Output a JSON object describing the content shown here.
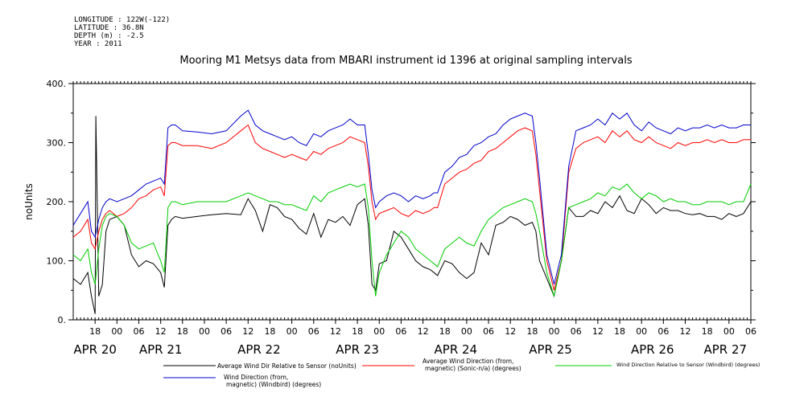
{
  "meta": {
    "longitude": "LONGITUDE : 122W(-122)",
    "latitude": "LATITUDE : 36.8N",
    "depth": "DEPTH (m) : -2.5",
    "year": "YEAR : 2011"
  },
  "chart_data": {
    "type": "line",
    "title": "Mooring M1 Metsys data from MBARI instrument id 1396 at original sampling intervals",
    "ylabel": "noUnits",
    "xlabel": "",
    "ylim": [
      0,
      400
    ],
    "yticks": [
      0,
      100,
      200,
      300,
      400
    ],
    "yticklabels": [
      "0.",
      "100.",
      "200.",
      "300.",
      "400."
    ],
    "xlim": [
      0,
      186
    ],
    "hour_ticks": [
      {
        "x": 6,
        "label": "18"
      },
      {
        "x": 12,
        "label": "00"
      },
      {
        "x": 18,
        "label": "06"
      },
      {
        "x": 24,
        "label": "12"
      },
      {
        "x": 30,
        "label": "18"
      },
      {
        "x": 36,
        "label": "00"
      },
      {
        "x": 42,
        "label": "06"
      },
      {
        "x": 48,
        "label": "12"
      },
      {
        "x": 54,
        "label": "18"
      },
      {
        "x": 60,
        "label": "00"
      },
      {
        "x": 66,
        "label": "06"
      },
      {
        "x": 72,
        "label": "12"
      },
      {
        "x": 78,
        "label": "18"
      },
      {
        "x": 84,
        "label": "00"
      },
      {
        "x": 90,
        "label": "06"
      },
      {
        "x": 96,
        "label": "12"
      },
      {
        "x": 102,
        "label": "18"
      },
      {
        "x": 108,
        "label": "00"
      },
      {
        "x": 114,
        "label": "06"
      },
      {
        "x": 120,
        "label": "12"
      },
      {
        "x": 126,
        "label": "18"
      },
      {
        "x": 132,
        "label": "00"
      },
      {
        "x": 138,
        "label": "06"
      },
      {
        "x": 144,
        "label": "12"
      },
      {
        "x": 150,
        "label": "18"
      },
      {
        "x": 156,
        "label": "00"
      },
      {
        "x": 162,
        "label": "06"
      },
      {
        "x": 168,
        "label": "12"
      },
      {
        "x": 174,
        "label": "18"
      },
      {
        "x": 180,
        "label": "00"
      },
      {
        "x": 186,
        "label": "06"
      }
    ],
    "day_labels": [
      {
        "x": 6,
        "label": "APR 20"
      },
      {
        "x": 24,
        "label": "APR 21"
      },
      {
        "x": 51,
        "label": "APR 22"
      },
      {
        "x": 78,
        "label": "APR 23"
      },
      {
        "x": 105,
        "label": "APR 24"
      },
      {
        "x": 131,
        "label": "APR 25"
      },
      {
        "x": 159,
        "label": "APR 26"
      },
      {
        "x": 179,
        "label": "APR 27"
      }
    ],
    "series": [
      {
        "name": "Average Wind Dir Relative to Sensor (noUnits)",
        "color": "#000000",
        "x": [
          0,
          2,
          4,
          5,
          6,
          6.2,
          7,
          8,
          9,
          10,
          12,
          14,
          16,
          18,
          20,
          22,
          24,
          25,
          26,
          27,
          28,
          30,
          34,
          38,
          42,
          46,
          48,
          50,
          52,
          54,
          56,
          58,
          60,
          62,
          64,
          66,
          68,
          70,
          72,
          74,
          76,
          78,
          80,
          81,
          82,
          83,
          84,
          86,
          88,
          90,
          92,
          94,
          96,
          98,
          99,
          100,
          102,
          104,
          106,
          108,
          110,
          112,
          114,
          116,
          118,
          120,
          122,
          124,
          126,
          127,
          128,
          130,
          132,
          134,
          136,
          138,
          140,
          142,
          144,
          146,
          148,
          150,
          152,
          154,
          156,
          158,
          160,
          162,
          164,
          166,
          168,
          170,
          172,
          174,
          176,
          178,
          180,
          182,
          184,
          186
        ],
        "y": [
          70,
          60,
          80,
          40,
          10,
          345,
          40,
          60,
          150,
          170,
          175,
          160,
          110,
          90,
          100,
          95,
          80,
          55,
          160,
          170,
          175,
          172,
          175,
          178,
          180,
          178,
          205,
          185,
          150,
          195,
          190,
          175,
          170,
          155,
          145,
          180,
          140,
          170,
          165,
          175,
          160,
          195,
          205,
          160,
          60,
          50,
          95,
          100,
          150,
          140,
          120,
          100,
          90,
          85,
          80,
          75,
          100,
          95,
          80,
          70,
          80,
          130,
          110,
          160,
          165,
          175,
          170,
          160,
          165,
          150,
          100,
          70,
          40,
          100,
          190,
          175,
          175,
          185,
          180,
          200,
          190,
          210,
          185,
          180,
          205,
          195,
          180,
          190,
          185,
          185,
          180,
          178,
          180,
          175,
          175,
          170,
          180,
          175,
          180,
          200
        ]
      },
      {
        "name": "Average Wind Direction (from, magnetic) (Sonic-n/a) (degrees)",
        "color": "#ff0000",
        "x": [
          0,
          2,
          4,
          5,
          6,
          7,
          8,
          9,
          10,
          12,
          14,
          16,
          18,
          20,
          22,
          24,
          25,
          26,
          27,
          28,
          30,
          34,
          38,
          42,
          46,
          48,
          50,
          52,
          54,
          56,
          58,
          60,
          62,
          64,
          66,
          68,
          70,
          72,
          74,
          76,
          78,
          80,
          81,
          82,
          83,
          84,
          86,
          88,
          90,
          92,
          94,
          96,
          98,
          99,
          100,
          102,
          104,
          106,
          108,
          110,
          112,
          114,
          116,
          118,
          120,
          122,
          124,
          126,
          127,
          128,
          130,
          132,
          134,
          136,
          138,
          140,
          142,
          144,
          146,
          148,
          150,
          152,
          154,
          156,
          158,
          160,
          162,
          164,
          166,
          168,
          170,
          172,
          174,
          176,
          178,
          180,
          182,
          184,
          186
        ],
        "y": [
          140,
          150,
          170,
          130,
          120,
          150,
          170,
          180,
          185,
          175,
          180,
          190,
          205,
          210,
          220,
          225,
          210,
          295,
          300,
          300,
          295,
          295,
          290,
          300,
          320,
          330,
          300,
          290,
          285,
          280,
          275,
          280,
          275,
          270,
          285,
          280,
          290,
          295,
          300,
          310,
          305,
          300,
          260,
          200,
          170,
          180,
          185,
          190,
          180,
          175,
          185,
          180,
          185,
          190,
          190,
          230,
          240,
          250,
          255,
          265,
          270,
          285,
          290,
          300,
          310,
          320,
          325,
          320,
          280,
          220,
          100,
          50,
          100,
          250,
          290,
          300,
          305,
          310,
          300,
          320,
          310,
          320,
          305,
          300,
          310,
          300,
          295,
          290,
          300,
          295,
          300,
          300,
          305,
          300,
          305,
          300,
          300,
          305,
          305
        ]
      },
      {
        "name": "Wind Direction Relative to Sensor (Windbird) (degrees)",
        "color": "#00cc00",
        "x": [
          0,
          2,
          4,
          5,
          6,
          7,
          8,
          9,
          10,
          12,
          14,
          16,
          18,
          20,
          22,
          24,
          25,
          26,
          27,
          28,
          30,
          34,
          38,
          42,
          46,
          48,
          50,
          52,
          54,
          56,
          58,
          60,
          62,
          64,
          66,
          68,
          70,
          72,
          74,
          76,
          78,
          80,
          81,
          82,
          83,
          84,
          86,
          88,
          90,
          92,
          94,
          96,
          98,
          99,
          100,
          102,
          104,
          106,
          108,
          110,
          112,
          114,
          116,
          118,
          120,
          122,
          124,
          126,
          127,
          128,
          130,
          132,
          134,
          136,
          138,
          140,
          142,
          144,
          146,
          148,
          150,
          152,
          154,
          156,
          158,
          160,
          162,
          164,
          166,
          168,
          170,
          172,
          174,
          176,
          178,
          180,
          182,
          184,
          186
        ],
        "y": [
          110,
          100,
          120,
          80,
          60,
          120,
          160,
          175,
          180,
          175,
          160,
          130,
          120,
          125,
          130,
          100,
          80,
          190,
          200,
          200,
          195,
          200,
          200,
          200,
          210,
          215,
          210,
          205,
          200,
          200,
          195,
          195,
          190,
          185,
          210,
          200,
          215,
          220,
          225,
          230,
          225,
          230,
          190,
          100,
          40,
          80,
          110,
          130,
          150,
          140,
          120,
          110,
          100,
          95,
          90,
          120,
          130,
          140,
          130,
          125,
          150,
          170,
          180,
          190,
          195,
          200,
          205,
          200,
          180,
          150,
          80,
          40,
          100,
          190,
          195,
          200,
          205,
          215,
          210,
          225,
          220,
          230,
          215,
          205,
          215,
          210,
          200,
          205,
          200,
          200,
          195,
          195,
          200,
          200,
          200,
          195,
          200,
          200,
          230
        ]
      },
      {
        "name": "Wind Direction (from, magnetic) (Windbird) (degrees)",
        "color": "#0000cc",
        "x": [
          0,
          2,
          4,
          5,
          6,
          7,
          8,
          9,
          10,
          12,
          14,
          16,
          18,
          20,
          22,
          24,
          25,
          26,
          27,
          28,
          30,
          34,
          38,
          42,
          46,
          48,
          50,
          52,
          54,
          56,
          58,
          60,
          62,
          64,
          66,
          68,
          70,
          72,
          74,
          76,
          78,
          80,
          81,
          82,
          83,
          84,
          86,
          88,
          90,
          92,
          94,
          96,
          98,
          99,
          100,
          102,
          104,
          106,
          108,
          110,
          112,
          114,
          116,
          118,
          120,
          122,
          124,
          126,
          127,
          128,
          130,
          132,
          134,
          136,
          138,
          140,
          142,
          144,
          146,
          148,
          150,
          152,
          154,
          156,
          158,
          160,
          162,
          164,
          166,
          168,
          170,
          172,
          174,
          176,
          178,
          180,
          182,
          184,
          186
        ],
        "y": [
          160,
          180,
          200,
          150,
          140,
          170,
          190,
          200,
          205,
          200,
          205,
          210,
          220,
          230,
          235,
          240,
          230,
          325,
          330,
          330,
          320,
          318,
          315,
          320,
          345,
          355,
          330,
          320,
          315,
          310,
          305,
          310,
          300,
          295,
          315,
          310,
          320,
          325,
          330,
          340,
          330,
          330,
          280,
          220,
          190,
          200,
          210,
          215,
          210,
          200,
          210,
          205,
          210,
          215,
          215,
          250,
          260,
          275,
          280,
          295,
          300,
          310,
          315,
          330,
          340,
          345,
          350,
          345,
          300,
          240,
          110,
          60,
          110,
          260,
          320,
          325,
          330,
          340,
          330,
          350,
          340,
          350,
          330,
          320,
          335,
          325,
          320,
          315,
          325,
          320,
          325,
          325,
          330,
          325,
          330,
          325,
          325,
          330,
          330
        ]
      }
    ],
    "legend_labels": {
      "black": "Average Wind Dir Relative to Sensor (noUnits)",
      "red1": "Average Wind Direction (from,",
      "red2": "magnetic) (Sonic-n/a) (degrees)",
      "green": "Wind Direction Relative to Sensor (Windbird) (degrees)",
      "blue1": "Wind Direction (from,",
      "blue2": "magnetic) (Windbird) (degrees)"
    },
    "grid": false
  }
}
